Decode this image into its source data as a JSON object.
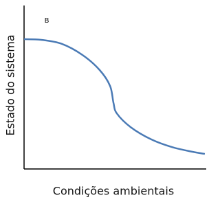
{
  "chart_data": {
    "type": "line",
    "annotation": "B",
    "xlabel": "Condições ambientais",
    "ylabel": "Estado do sistema",
    "x": [
      0,
      0.94,
      2.08,
      3.21,
      4.15,
      4.72,
      4.91,
      5.09,
      5.85,
      6.98,
      8.11,
      9.25,
      9.92
    ],
    "series": [
      {
        "color": "#4a7ab5",
        "values": [
          7.94,
          7.9,
          7.65,
          6.97,
          6.05,
          5.08,
          4.03,
          3.4,
          2.56,
          1.81,
          1.34,
          1.05,
          0.92
        ]
      }
    ],
    "xlim": [
      0,
      10
    ],
    "ylim": [
      0,
      10
    ]
  }
}
